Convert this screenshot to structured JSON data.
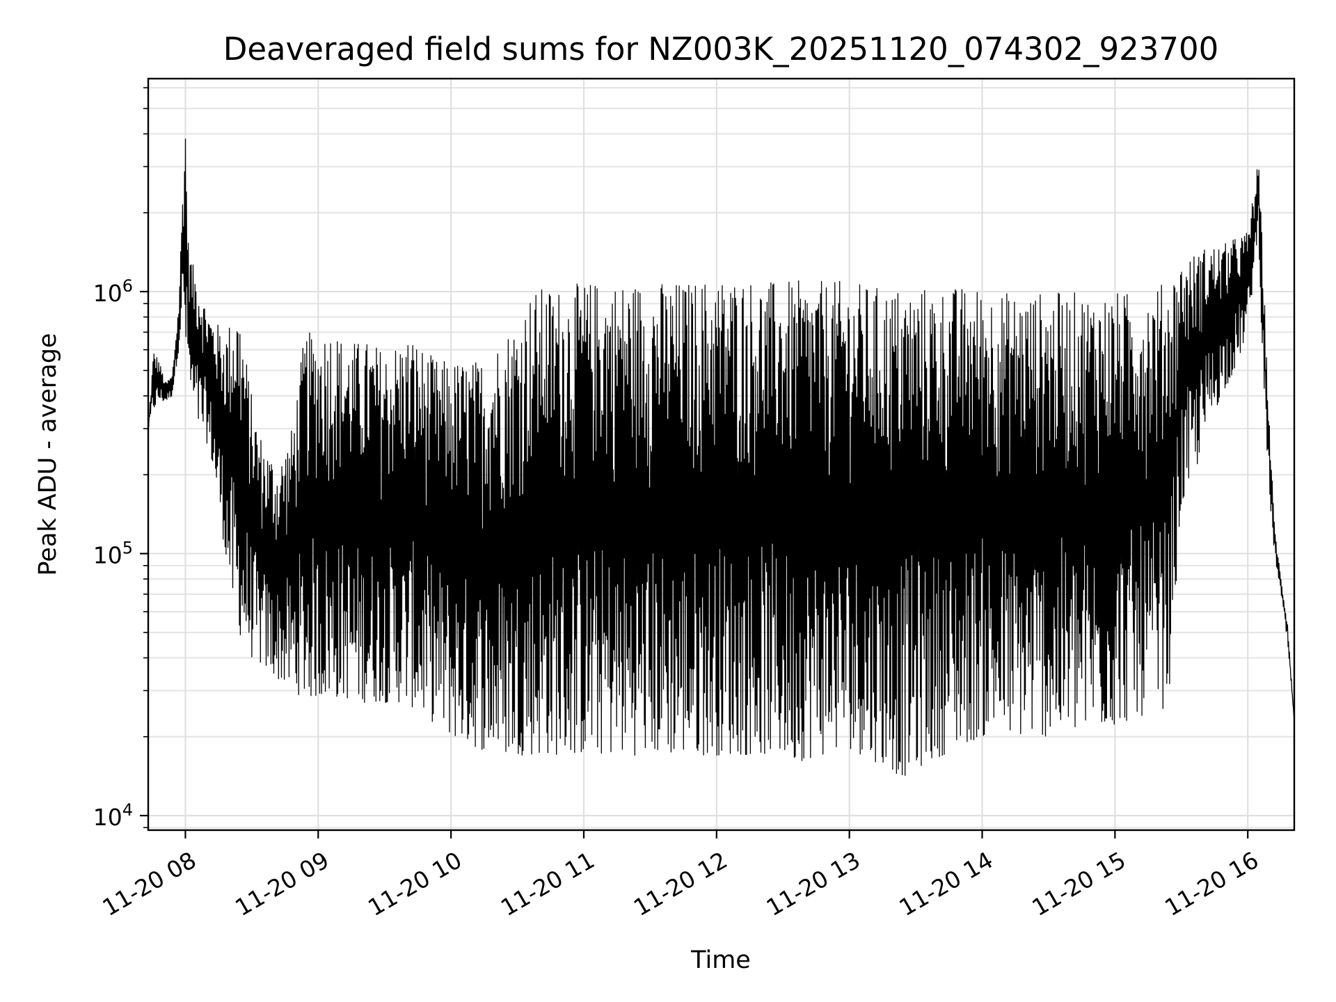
{
  "chart_data": {
    "type": "line",
    "title": "Deaveraged field sums for NZ003K_20251120_074302_923700",
    "xlabel": "Time",
    "ylabel": "Peak ADU - average",
    "yscale": "log",
    "ylim": [
      8800,
      6500000
    ],
    "xlim_hours": [
      7.72,
      16.35
    ],
    "grid": true,
    "x_ticks": [
      {
        "hour": 8,
        "label": "11-20 08"
      },
      {
        "hour": 9,
        "label": "11-20 09"
      },
      {
        "hour": 10,
        "label": "11-20 10"
      },
      {
        "hour": 11,
        "label": "11-20 11"
      },
      {
        "hour": 12,
        "label": "11-20 12"
      },
      {
        "hour": 13,
        "label": "11-20 13"
      },
      {
        "hour": 14,
        "label": "11-20 14"
      },
      {
        "hour": 15,
        "label": "11-20 15"
      },
      {
        "hour": 16,
        "label": "11-20 16"
      }
    ],
    "y_ticks": [
      {
        "value": 10000,
        "base": "10",
        "exp": "4"
      },
      {
        "value": 100000,
        "base": "10",
        "exp": "5"
      },
      {
        "value": 1000000,
        "base": "10",
        "exp": "6"
      }
    ],
    "series": [
      {
        "name": "Peak ADU - average",
        "color": "#000000",
        "x_hours": [
          7.72,
          7.76,
          7.8,
          7.85,
          7.9,
          7.95,
          7.98,
          8.0,
          8.02,
          8.05,
          8.1,
          8.15,
          8.2,
          8.25,
          8.3,
          8.35,
          8.4,
          8.45,
          8.5,
          8.55,
          8.6,
          8.7,
          8.8,
          8.9,
          9.0,
          9.1,
          9.2,
          9.3,
          9.4,
          9.5,
          9.6,
          9.7,
          9.8,
          9.9,
          10.0,
          10.1,
          10.2,
          10.3,
          10.4,
          10.5,
          10.6,
          10.7,
          10.8,
          10.9,
          11.0,
          11.2,
          11.4,
          11.6,
          11.8,
          12.0,
          12.2,
          12.4,
          12.6,
          12.8,
          13.0,
          13.2,
          13.4,
          13.6,
          13.8,
          14.0,
          14.2,
          14.4,
          14.6,
          14.8,
          15.0,
          15.2,
          15.4,
          15.5,
          15.6,
          15.7,
          15.8,
          15.9,
          16.0,
          16.05,
          16.08,
          16.1,
          16.15,
          16.2,
          16.25,
          16.3,
          16.35
        ],
        "upper": [
          300000,
          600000,
          550000,
          450000,
          480000,
          900000,
          2500000,
          4800000,
          1600000,
          1300000,
          1100000,
          900000,
          800000,
          750000,
          700000,
          800000,
          900000,
          600000,
          400000,
          300000,
          260000,
          220000,
          300000,
          700000,
          700000,
          750000,
          650000,
          650000,
          650000,
          600000,
          650000,
          700000,
          600000,
          550000,
          550000,
          550000,
          550000,
          600000,
          700000,
          800000,
          1000000,
          1050000,
          1050000,
          1050000,
          1100000,
          1100000,
          1100000,
          1100000,
          1100000,
          1150000,
          1150000,
          1100000,
          1100000,
          1100000,
          1100000,
          1050000,
          1050000,
          1050000,
          1050000,
          1050000,
          1000000,
          1000000,
          1000000,
          1000000,
          1000000,
          1000000,
          1100000,
          1300000,
          1400000,
          1500000,
          1500000,
          1600000,
          1700000,
          2500000,
          3200000,
          2000000,
          450000,
          130000,
          80000,
          55000,
          23000
        ],
        "lower": [
          300000,
          350000,
          380000,
          380000,
          400000,
          600000,
          900000,
          600000,
          500000,
          350000,
          300000,
          280000,
          220000,
          150000,
          100000,
          65000,
          50000,
          45000,
          40000,
          38000,
          36000,
          33000,
          30000,
          28000,
          28000,
          28000,
          28000,
          27000,
          27000,
          27000,
          27000,
          26000,
          24000,
          22000,
          20000,
          19000,
          18000,
          17500,
          17000,
          17000,
          17000,
          17000,
          17000,
          17000,
          17000,
          17000,
          17000,
          17000,
          17000,
          17000,
          17000,
          17000,
          16000,
          17000,
          18000,
          16000,
          14000,
          16000,
          18000,
          20000,
          20000,
          20000,
          20000,
          21000,
          22000,
          24000,
          26000,
          150000,
          200000,
          300000,
          400000,
          500000,
          700000,
          1200000,
          1800000,
          800000,
          200000,
          100000,
          70000,
          45000,
          23000
        ]
      }
    ]
  }
}
